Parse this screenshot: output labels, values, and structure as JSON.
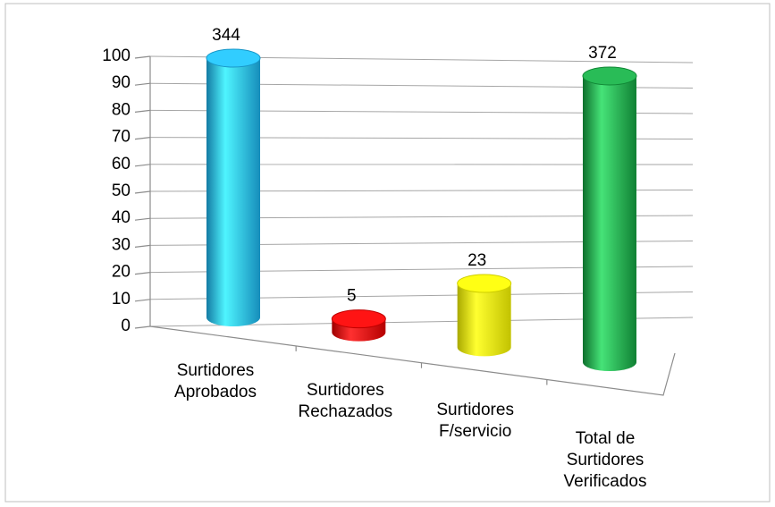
{
  "chart_data": {
    "type": "bar3d",
    "categories": [
      [
        "Surtidores",
        "Aprobados"
      ],
      [
        "Surtidores",
        "Rechazados"
      ],
      [
        "Surtidores",
        "F/servicio"
      ],
      [
        "Total de",
        "Surtidores",
        "Verificados"
      ]
    ],
    "values": [
      344,
      5,
      23,
      372
    ],
    "colors": [
      "#1cb0ea",
      "#e20000",
      "#f2f200",
      "#14a040"
    ],
    "ylim": [
      0,
      100
    ],
    "yticks": [
      0,
      10,
      20,
      30,
      40,
      50,
      60,
      70,
      80,
      90,
      100
    ],
    "grid": true
  }
}
